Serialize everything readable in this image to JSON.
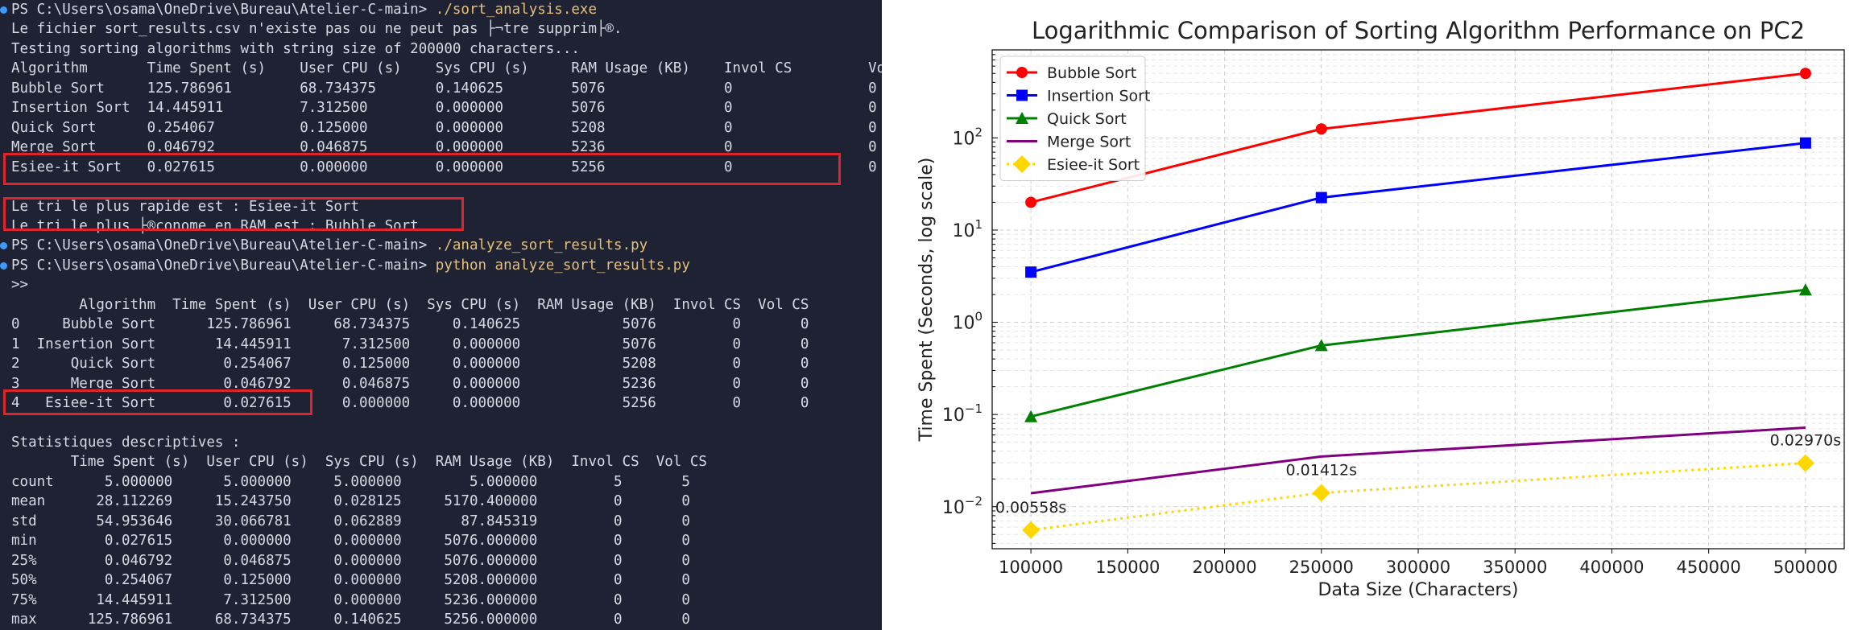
{
  "terminal": {
    "lines": [
      {
        "prompt": "PS C:\\Users\\osama\\OneDrive\\Bureau\\Atelier-C-main> ",
        "command": "./sort_analysis.exe",
        "marker": true
      },
      {
        "text": "Le fichier sort_results.csv n'existe pas ou ne peut pas ├¬tre supprim├®."
      },
      {
        "text": "Testing sorting algorithms with string size of 200000 characters..."
      },
      {
        "text": "Algorithm       Time Spent (s)    User CPU (s)    Sys CPU (s)     RAM Usage (KB)    Invol CS         Vol CS"
      },
      {
        "text": "Bubble Sort     125.786961        68.734375       0.140625        5076              0                0"
      },
      {
        "text": "Insertion Sort  14.445911         7.312500        0.000000        5076              0                0"
      },
      {
        "text": "Quick Sort      0.254067          0.125000        0.000000        5208              0                0"
      },
      {
        "text": "Merge Sort      0.046792          0.046875        0.000000        5236              0                0"
      },
      {
        "text": "Esiee-it Sort   0.027615          0.000000        0.000000        5256              0                0"
      },
      {
        "text": ""
      },
      {
        "text": "Le tri le plus rapide est : Esiee-it Sort"
      },
      {
        "text": "Le tri le plus ├®conome en RAM est : Bubble Sort"
      },
      {
        "prompt": "PS C:\\Users\\osama\\OneDrive\\Bureau\\Atelier-C-main> ",
        "command": "./analyze_sort_results.py",
        "marker": true
      },
      {
        "prompt": "PS C:\\Users\\osama\\OneDrive\\Bureau\\Atelier-C-main> ",
        "command": "python analyze_sort_results.py",
        "marker": true
      },
      {
        "text": ">>"
      },
      {
        "text": "        Algorithm  Time Spent (s)  User CPU (s)  Sys CPU (s)  RAM Usage (KB)  Invol CS  Vol CS"
      },
      {
        "text": "0     Bubble Sort      125.786961     68.734375     0.140625            5076         0       0"
      },
      {
        "text": "1  Insertion Sort       14.445911      7.312500     0.000000            5076         0       0"
      },
      {
        "text": "2      Quick Sort        0.254067      0.125000     0.000000            5208         0       0"
      },
      {
        "text": "3      Merge Sort        0.046792      0.046875     0.000000            5236         0       0"
      },
      {
        "text": "4   Esiee-it Sort        0.027615      0.000000     0.000000            5256         0       0"
      },
      {
        "text": ""
      },
      {
        "text": "Statistiques descriptives :"
      },
      {
        "text": "       Time Spent (s)  User CPU (s)  Sys CPU (s)  RAM Usage (KB)  Invol CS  Vol CS"
      },
      {
        "text": "count      5.000000      5.000000     5.000000        5.000000         5       5"
      },
      {
        "text": "mean      28.112269     15.243750     0.028125     5170.400000         0       0"
      },
      {
        "text": "std       54.953646     30.066781     0.062889       87.845319         0       0"
      },
      {
        "text": "min        0.027615      0.000000     0.000000     5076.000000         0       0"
      },
      {
        "text": "25%        0.046792      0.046875     0.000000     5076.000000         0       0"
      },
      {
        "text": "50%        0.254067      0.125000     0.000000     5208.000000         0       0"
      },
      {
        "text": "75%       14.445911      7.312500     0.000000     5236.000000         0       0"
      },
      {
        "text": "max      125.786961     68.734375     0.140625     5256.000000         0       0"
      }
    ]
  },
  "colors": {
    "terminal_bg": "#1e2233",
    "terminal_text": "#d7dae3",
    "command": "#e5c07b",
    "prompt_marker": "#3b9cff",
    "highlight": "#e0242e"
  },
  "chart_data": {
    "type": "line",
    "title": "Logarithmic Comparison of Sorting Algorithm Performance on PC2",
    "xlabel": "Data Size (Characters)",
    "ylabel": "Time Spent (Seconds, log scale)",
    "yscale": "log",
    "xlim": [
      80000,
      520000
    ],
    "ylim": [
      0.0035,
      900
    ],
    "xticks": [
      100000,
      150000,
      200000,
      250000,
      300000,
      350000,
      400000,
      450000,
      500000
    ],
    "yticks": [
      {
        "value": 0.01,
        "base": "10",
        "exp": "−2"
      },
      {
        "value": 0.1,
        "base": "10",
        "exp": "−1"
      },
      {
        "value": 1,
        "base": "10",
        "exp": "0"
      },
      {
        "value": 10,
        "base": "10",
        "exp": "1"
      },
      {
        "value": 100,
        "base": "10",
        "exp": "2"
      }
    ],
    "grid": true,
    "legend": "top-left",
    "x": [
      100000,
      250000,
      500000
    ],
    "series": [
      {
        "name": "Bubble Sort",
        "values": [
          20,
          125,
          500
        ],
        "color": "#ff0000",
        "marker": "circle",
        "style": "solid"
      },
      {
        "name": "Insertion Sort",
        "values": [
          3.5,
          22.5,
          88
        ],
        "color": "#0000ff",
        "marker": "square",
        "style": "solid"
      },
      {
        "name": "Quick Sort",
        "values": [
          0.095,
          0.56,
          2.25
        ],
        "color": "#008000",
        "marker": "triangle",
        "style": "solid"
      },
      {
        "name": "Merge Sort",
        "values": [
          0.014,
          0.035,
          0.072
        ],
        "color": "#800080",
        "marker": "none",
        "style": "solid"
      },
      {
        "name": "Esiee-it Sort",
        "values": [
          0.00558,
          0.01412,
          0.0297
        ],
        "color": "#ffd700",
        "marker": "diamond",
        "style": "dotted",
        "labels": [
          "0.00558s",
          "0.01412s",
          "0.02970s"
        ]
      }
    ]
  }
}
